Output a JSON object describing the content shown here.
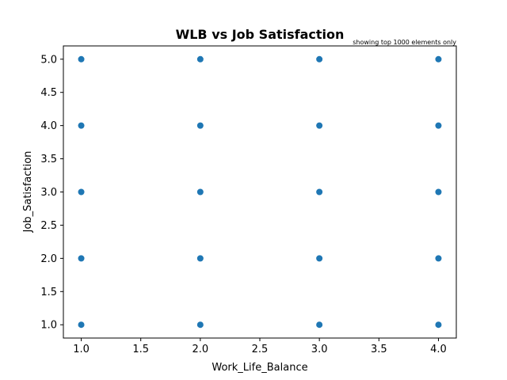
{
  "chart_data": {
    "type": "scatter",
    "title": "WLB vs Job Satisfaction",
    "annotation": "showing top 1000 elements only",
    "xlabel": "Work_Life_Balance",
    "ylabel": "Job_Satisfaction",
    "xlim": [
      0.85,
      4.15
    ],
    "ylim": [
      0.8,
      5.2
    ],
    "xticks": [
      "1.0",
      "1.5",
      "2.0",
      "2.5",
      "3.0",
      "3.5",
      "4.0"
    ],
    "yticks": [
      "1.0",
      "1.5",
      "2.0",
      "2.5",
      "3.0",
      "3.5",
      "4.0",
      "4.5",
      "5.0"
    ],
    "grid": false,
    "marker_color": "#1f77b4",
    "points": [
      {
        "x": 1,
        "y": 1
      },
      {
        "x": 1,
        "y": 2
      },
      {
        "x": 1,
        "y": 3
      },
      {
        "x": 1,
        "y": 4
      },
      {
        "x": 1,
        "y": 5
      },
      {
        "x": 2,
        "y": 1
      },
      {
        "x": 2,
        "y": 2
      },
      {
        "x": 2,
        "y": 3
      },
      {
        "x": 2,
        "y": 4
      },
      {
        "x": 2,
        "y": 5
      },
      {
        "x": 3,
        "y": 1
      },
      {
        "x": 3,
        "y": 2
      },
      {
        "x": 3,
        "y": 3
      },
      {
        "x": 3,
        "y": 4
      },
      {
        "x": 3,
        "y": 5
      },
      {
        "x": 4,
        "y": 1
      },
      {
        "x": 4,
        "y": 2
      },
      {
        "x": 4,
        "y": 3
      },
      {
        "x": 4,
        "y": 4
      },
      {
        "x": 4,
        "y": 5
      }
    ]
  }
}
